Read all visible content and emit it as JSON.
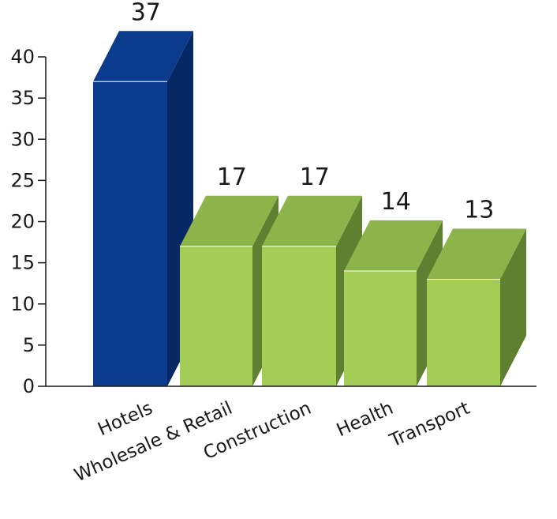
{
  "chart_data": {
    "type": "bar",
    "style": "3d",
    "title": "",
    "xlabel": "",
    "ylabel": "",
    "categories": [
      "Hotels",
      "Wholesale & Retail",
      "Construction",
      "Health",
      "Transport"
    ],
    "values": [
      37,
      17,
      17,
      14,
      13
    ],
    "data_labels": [
      "37",
      "17",
      "17",
      "14",
      "13"
    ],
    "highlight_index": 0,
    "ylim": [
      0,
      40
    ],
    "yticks": [
      0,
      5,
      10,
      15,
      20,
      25,
      30,
      35,
      40
    ],
    "ytick_labels": [
      "0",
      "5",
      "10",
      "15",
      "20",
      "25",
      "30",
      "35",
      "40"
    ],
    "grid": false,
    "legend": "none",
    "colors": {
      "highlight_front": "#0a3b8c",
      "highlight_side": "#062865",
      "highlight_top": "#0a3b8c",
      "normal_front": "#a3cd55",
      "normal_side": "#5f8030",
      "normal_top": "#8db44a",
      "axis": "#1a1a1a"
    }
  }
}
